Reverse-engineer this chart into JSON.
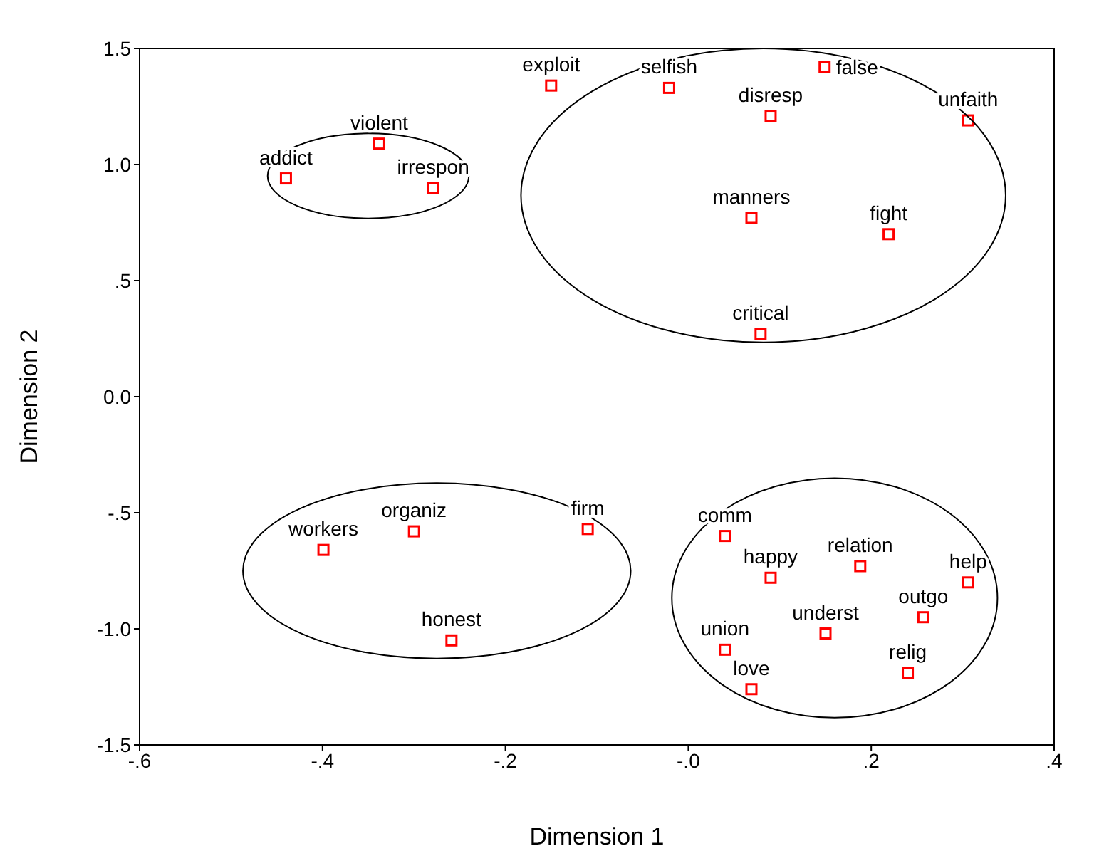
{
  "chart_data": {
    "type": "scatter",
    "xlabel": "Dimension 1",
    "ylabel": "Dimension 2",
    "x": [
      -0.15,
      -0.021,
      0.149,
      0.09,
      0.306,
      0.069,
      0.219,
      0.079,
      -0.338,
      -0.44,
      -0.279,
      -0.399,
      -0.3,
      -0.11,
      -0.259,
      0.04,
      0.09,
      0.188,
      0.306,
      0.257,
      0.15,
      0.04,
      0.24,
      0.069
    ],
    "values": [
      1.34,
      1.33,
      1.42,
      1.21,
      1.19,
      0.77,
      0.7,
      0.27,
      1.09,
      0.94,
      0.9,
      -0.66,
      -0.58,
      -0.57,
      -1.05,
      -0.6,
      -0.78,
      -0.73,
      -0.8,
      -0.95,
      -1.02,
      -1.09,
      -1.19,
      -1.26
    ],
    "color": "#ff0000",
    "marker": "square",
    "grid": false,
    "legend": false,
    "xlim": [
      -0.6,
      0.4
    ],
    "xticks": [
      {
        "value": -0.6,
        "label": "-.6"
      },
      {
        "value": -0.4,
        "label": "-.4"
      },
      {
        "value": -0.2,
        "label": "-.2"
      },
      {
        "value": 0,
        "label": "-.0"
      },
      {
        "value": 0.2,
        "label": ".2"
      },
      {
        "value": 0.4,
        "label": ".4"
      }
    ],
    "ylim": [
      -1.5,
      1.5
    ],
    "yticks": [
      -1.5,
      {
        "value": -1,
        "label": "-1.0"
      },
      {
        "value": -0.5,
        "label": "-.5"
      },
      {
        "value": 0,
        "label": "0.0"
      },
      {
        "value": 0.5,
        "label": ".5"
      },
      {
        "value": 1,
        "label": "1.0"
      },
      1.5
    ],
    "annotations": [
      {
        "text": "exploit",
        "x": -0.15,
        "y": 1.34
      },
      {
        "text": "selfish",
        "x": -0.021,
        "y": 1.33
      },
      {
        "text": "false",
        "x": 0.149,
        "y": 1.42
      },
      {
        "text": "disresp",
        "x": 0.09,
        "y": 1.21
      },
      {
        "text": "unfaith",
        "x": 0.306,
        "y": 1.19
      },
      {
        "text": "manners",
        "x": 0.069,
        "y": 0.77
      },
      {
        "text": "fight",
        "x": 0.219,
        "y": 0.7
      },
      {
        "text": "critical",
        "x": 0.079,
        "y": 0.27
      },
      {
        "text": "violent",
        "x": -0.338,
        "y": 1.09
      },
      {
        "text": "addict",
        "x": -0.44,
        "y": 0.94
      },
      {
        "text": "irrespon",
        "x": -0.279,
        "y": 0.9
      },
      {
        "text": "workers",
        "x": -0.399,
        "y": -0.66
      },
      {
        "text": "organiz",
        "x": -0.3,
        "y": -0.58
      },
      {
        "text": "firm",
        "x": -0.11,
        "y": -0.57
      },
      {
        "text": "honest",
        "x": -0.259,
        "y": -1.05
      },
      {
        "text": "comm",
        "x": 0.04,
        "y": -0.6
      },
      {
        "text": "happy",
        "x": 0.09,
        "y": -0.78
      },
      {
        "text": "relation",
        "x": 0.188,
        "y": -0.73
      },
      {
        "text": "help",
        "x": 0.306,
        "y": -0.8
      },
      {
        "text": "outgo",
        "x": 0.257,
        "y": -0.95
      },
      {
        "text": "underst",
        "x": 0.15,
        "y": -1.02
      },
      {
        "text": "union",
        "x": 0.04,
        "y": -1.09
      },
      {
        "text": "relig",
        "x": 0.24,
        "y": -1.19
      },
      {
        "text": "love",
        "x": 0.069,
        "y": -1.26
      }
    ]
  }
}
